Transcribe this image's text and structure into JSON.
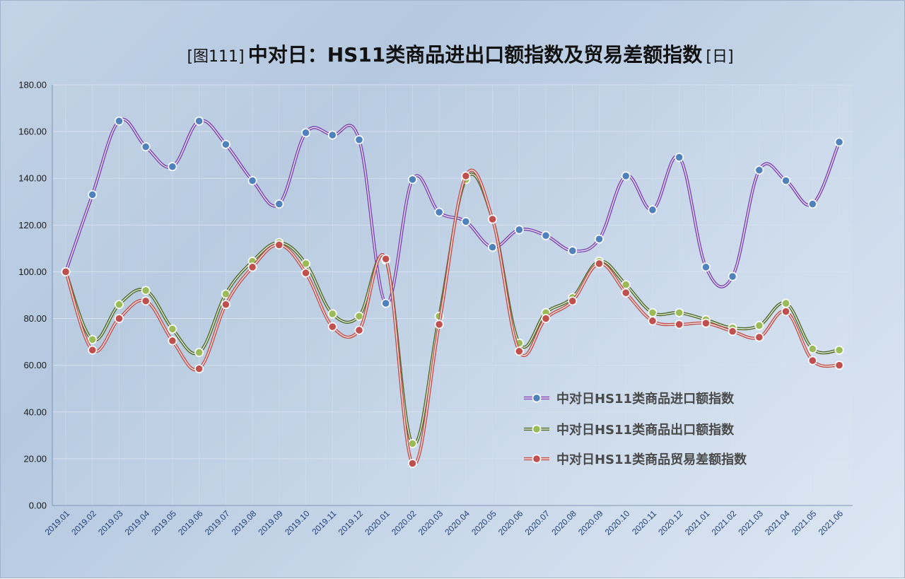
{
  "chart_data": {
    "type": "line",
    "title": {
      "prefix": "[图111]",
      "main": "中对日：HS11类商品进出口额指数及贸易差额指数",
      "suffix": "[日]"
    },
    "categories": [
      "2019.01",
      "2019.02",
      "2019.03",
      "2019.04",
      "2019.05",
      "2019.06",
      "2019.07",
      "2019.08",
      "2019.09",
      "2019.10",
      "2019.11",
      "2019.12",
      "2020.01",
      "2020.02",
      "2020.03",
      "2020.04",
      "2020.05",
      "2020.06",
      "2020.07",
      "2020.08",
      "2020.09",
      "2020.10",
      "2020.11",
      "2020.12",
      "2021.01",
      "2021.02",
      "2021.03",
      "2021.04",
      "2021.05",
      "2021.06"
    ],
    "y_ticks": [
      "0.00",
      "20.00",
      "40.00",
      "60.00",
      "80.00",
      "100.00",
      "120.00",
      "140.00",
      "160.00",
      "180.00"
    ],
    "ylim": [
      0,
      180
    ],
    "grid": true,
    "legend_position": "right",
    "series": [
      {
        "name": "中对日HS11类商品进口额指数",
        "color": "#7b45b5",
        "marker": "#4f81bd",
        "values": [
          100,
          133,
          164.5,
          153.5,
          145,
          164.5,
          154.5,
          139,
          129,
          159.5,
          158.5,
          156.5,
          86.5,
          139.5,
          125.5,
          121.5,
          110.5,
          118,
          115.5,
          109,
          114,
          141,
          126.5,
          149,
          102,
          98,
          143.5,
          139,
          129,
          155.5
        ]
      },
      {
        "name": "中对日HS11类商品出口额指数",
        "color": "#4e6b2a",
        "marker": "#9bbb59",
        "values": [
          100,
          71,
          86,
          92,
          75.5,
          65.5,
          90.5,
          104.5,
          112.5,
          103.5,
          82,
          81,
          105,
          26.5,
          81,
          139.5,
          122.5,
          69.5,
          82.5,
          89,
          104.5,
          94.5,
          82.5,
          82.5,
          79.5,
          76,
          77,
          86.5,
          67,
          66.5
        ]
      },
      {
        "name": "中对日HS11类商品贸易差额指数",
        "color": "#c0504d",
        "marker": "#c0504d",
        "values": [
          100,
          66.5,
          80,
          87.5,
          70.5,
          58.5,
          86,
          102,
          111.5,
          99.5,
          76.5,
          75,
          105.5,
          18,
          77.5,
          141,
          122.5,
          66,
          80,
          87.5,
          103.5,
          91,
          79,
          77.5,
          78,
          74.5,
          72,
          83,
          62,
          60
        ]
      }
    ]
  }
}
